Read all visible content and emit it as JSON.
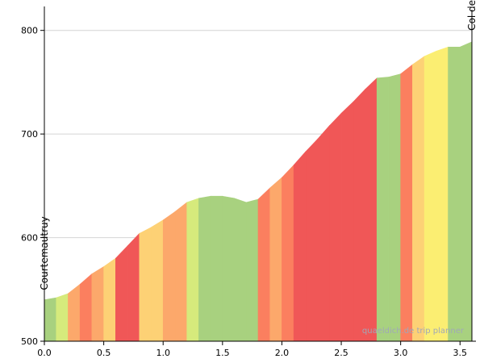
{
  "chart_data": {
    "type": "area",
    "title": "",
    "xlabel": "",
    "ylabel": "",
    "xlim": [
      0,
      3.6
    ],
    "ylim": [
      500,
      820
    ],
    "x_ticks": [
      0.0,
      0.5,
      1.0,
      1.5,
      2.0,
      2.5,
      3.0,
      3.5
    ],
    "x_tick_labels": [
      "0.0",
      "0.5",
      "1.0",
      "1.5",
      "2.0",
      "2.5",
      "3.0",
      "3.5"
    ],
    "y_ticks": [
      500,
      600,
      700,
      800
    ],
    "y_tick_labels": [
      "500",
      "600",
      "700",
      "800"
    ],
    "grid": "horizontal",
    "start_label": "Courtemautruy",
    "end_label": "Col de la Croix (Jura)",
    "watermark": "quaeldich.de trip planner",
    "gradient_colors": {
      "flat": "#a8d17f",
      "gentle": "#d6ea7c",
      "easy": "#fbee72",
      "moderate": "#fdd175",
      "steep": "#fca86b",
      "very_steep": "#fb7f5f",
      "extreme": "#f05757"
    },
    "profile": [
      {
        "x": 0.0,
        "y": 540
      },
      {
        "x": 0.1,
        "y": 542
      },
      {
        "x": 0.2,
        "y": 546
      },
      {
        "x": 0.3,
        "y": 555
      },
      {
        "x": 0.4,
        "y": 565
      },
      {
        "x": 0.5,
        "y": 572
      },
      {
        "x": 0.6,
        "y": 580
      },
      {
        "x": 0.7,
        "y": 592
      },
      {
        "x": 0.8,
        "y": 604
      },
      {
        "x": 0.9,
        "y": 610
      },
      {
        "x": 1.0,
        "y": 617
      },
      {
        "x": 1.1,
        "y": 625
      },
      {
        "x": 1.2,
        "y": 634
      },
      {
        "x": 1.3,
        "y": 638
      },
      {
        "x": 1.4,
        "y": 640
      },
      {
        "x": 1.5,
        "y": 640
      },
      {
        "x": 1.6,
        "y": 638
      },
      {
        "x": 1.7,
        "y": 634
      },
      {
        "x": 1.8,
        "y": 637
      },
      {
        "x": 1.9,
        "y": 648
      },
      {
        "x": 2.0,
        "y": 658
      },
      {
        "x": 2.1,
        "y": 670
      },
      {
        "x": 2.2,
        "y": 683
      },
      {
        "x": 2.3,
        "y": 695
      },
      {
        "x": 2.4,
        "y": 708
      },
      {
        "x": 2.5,
        "y": 720
      },
      {
        "x": 2.6,
        "y": 731
      },
      {
        "x": 2.7,
        "y": 743
      },
      {
        "x": 2.8,
        "y": 754
      },
      {
        "x": 2.9,
        "y": 755
      },
      {
        "x": 3.0,
        "y": 758
      },
      {
        "x": 3.1,
        "y": 767
      },
      {
        "x": 3.2,
        "y": 775
      },
      {
        "x": 3.3,
        "y": 780
      },
      {
        "x": 3.4,
        "y": 784
      },
      {
        "x": 3.5,
        "y": 784
      },
      {
        "x": 3.6,
        "y": 789
      }
    ],
    "segment_grades": [
      "flat",
      "gentle",
      "steep",
      "very_steep",
      "steep",
      "moderate",
      "extreme",
      "extreme",
      "moderate",
      "moderate",
      "steep",
      "steep",
      "gentle",
      "flat",
      "flat",
      "flat",
      "flat",
      "flat",
      "very_steep",
      "steep",
      "very_steep",
      "extreme",
      "extreme",
      "extreme",
      "extreme",
      "extreme",
      "extreme",
      "extreme",
      "flat",
      "flat",
      "very_steep",
      "moderate",
      "easy",
      "easy",
      "flat",
      "flat"
    ]
  }
}
